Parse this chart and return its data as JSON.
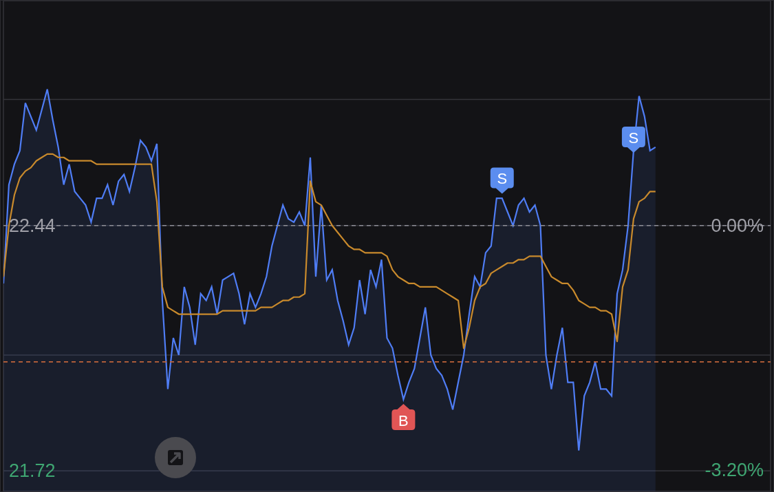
{
  "chart_data": {
    "type": "area",
    "categories": [
      null,
      null,
      null,
      null,
      null,
      null,
      null,
      null,
      null,
      null,
      null,
      null,
      null,
      null,
      null,
      null,
      null,
      null,
      null,
      null,
      null,
      null,
      null,
      null,
      null,
      null,
      null,
      null,
      null,
      null,
      null,
      null,
      null,
      null,
      null,
      null,
      null,
      null,
      null,
      null,
      null,
      null,
      null,
      null,
      null,
      null,
      null,
      null,
      null,
      null,
      null,
      null,
      null,
      null,
      null,
      null,
      null,
      null,
      null,
      null,
      null,
      null,
      null,
      null,
      null,
      null,
      null,
      null,
      null,
      null,
      null,
      null,
      null,
      null,
      null,
      null,
      null,
      null,
      null,
      null,
      null,
      null,
      null,
      null,
      null,
      null,
      null,
      null,
      null,
      null,
      null,
      null,
      null,
      null,
      null,
      null,
      null,
      null,
      null,
      null,
      null,
      null,
      null,
      null,
      null,
      null,
      null,
      null,
      null,
      null,
      null,
      null,
      null,
      null,
      null,
      null,
      null,
      null,
      null,
      null
    ],
    "series": [
      {
        "color": "#4f7df5",
        "values": [
          22.27,
          22.56,
          22.62,
          22.66,
          22.8,
          22.76,
          22.72,
          22.78,
          22.84,
          22.75,
          22.67,
          22.56,
          22.62,
          22.54,
          22.52,
          22.5,
          22.45,
          22.52,
          22.52,
          22.56,
          22.5,
          22.57,
          22.59,
          22.54,
          22.61,
          22.69,
          22.67,
          22.63,
          22.68,
          22.22,
          21.96,
          22.11,
          22.06,
          22.26,
          22.2,
          22.09,
          22.24,
          22.22,
          22.26,
          22.18,
          22.28,
          22.29,
          22.3,
          22.24,
          22.15,
          22.24,
          22.2,
          22.24,
          22.29,
          22.38,
          22.44,
          22.5,
          22.46,
          22.45,
          22.48,
          22.44,
          22.64,
          22.29,
          22.5,
          22.28,
          22.31,
          22.22,
          22.16,
          22.09,
          22.14,
          22.28,
          22.18,
          22.31,
          22.26,
          22.34,
          22.11,
          22.08,
          22.0,
          21.93,
          21.98,
          22.02,
          22.11,
          22.2,
          22.06,
          22.02,
          22.0,
          21.96,
          21.9,
          21.98,
          22.06,
          22.18,
          22.29,
          22.26,
          22.36,
          22.38,
          22.52,
          22.52,
          22.48,
          22.44,
          22.5,
          22.52,
          22.48,
          22.5,
          22.44,
          22.06,
          21.96,
          22.06,
          22.14,
          21.98,
          21.98,
          21.78,
          21.94,
          21.98,
          22.04,
          21.96,
          21.96,
          21.94,
          22.24,
          22.31,
          22.44,
          22.66,
          22.82,
          22.76,
          22.66,
          22.67
        ]
      },
      {
        "type": "line",
        "color": "#c98a2c",
        "values": [
          22.29,
          22.44,
          22.53,
          22.58,
          22.6,
          22.61,
          22.63,
          22.64,
          22.65,
          22.65,
          22.64,
          22.64,
          22.63,
          22.63,
          22.63,
          22.63,
          22.63,
          22.62,
          22.62,
          22.62,
          22.62,
          22.62,
          22.62,
          22.62,
          22.62,
          22.62,
          22.62,
          22.62,
          22.51,
          22.26,
          22.2,
          22.19,
          22.18,
          22.18,
          22.18,
          22.18,
          22.18,
          22.18,
          22.18,
          22.18,
          22.19,
          22.19,
          22.19,
          22.19,
          22.19,
          22.19,
          22.19,
          22.2,
          22.2,
          22.2,
          22.21,
          22.22,
          22.22,
          22.23,
          22.23,
          22.24,
          22.57,
          22.51,
          22.5,
          22.47,
          22.44,
          22.42,
          22.4,
          22.38,
          22.37,
          22.37,
          22.36,
          22.36,
          22.36,
          22.36,
          22.35,
          22.31,
          22.29,
          22.28,
          22.27,
          22.27,
          22.26,
          22.26,
          22.26,
          22.26,
          22.25,
          22.24,
          22.23,
          22.22,
          22.08,
          22.14,
          22.22,
          22.26,
          22.27,
          22.3,
          22.31,
          22.32,
          22.33,
          22.33,
          22.34,
          22.34,
          22.35,
          22.35,
          22.35,
          22.32,
          22.29,
          22.28,
          22.27,
          22.27,
          22.25,
          22.22,
          22.21,
          22.2,
          22.2,
          22.19,
          22.19,
          22.18,
          22.1,
          22.26,
          22.31,
          22.46,
          22.51,
          22.52,
          22.54,
          22.54
        ]
      },
      {
        "type": "scatter",
        "values": [
          null,
          null,
          null,
          null,
          null,
          null,
          null,
          null,
          null,
          null,
          null,
          null,
          null,
          null,
          null,
          null,
          null,
          null,
          null,
          null,
          null,
          null,
          null,
          null,
          null,
          null,
          null,
          null,
          null,
          null,
          null,
          null,
          null,
          null,
          null,
          null,
          null,
          null,
          null,
          null,
          null,
          null,
          null,
          null,
          null,
          null,
          null,
          null,
          null,
          null,
          null,
          null,
          null,
          null,
          null,
          null,
          null,
          null,
          null,
          null,
          null,
          null,
          null,
          null,
          null,
          null,
          null,
          null,
          null,
          null,
          null,
          null,
          null,
          21.87,
          null,
          null,
          null,
          null,
          null,
          null,
          null,
          null,
          null,
          null,
          null,
          null,
          null,
          null,
          null,
          null,
          null,
          22.58,
          null,
          null,
          null,
          null,
          null,
          null,
          null,
          null,
          null,
          null,
          null,
          null,
          null,
          null,
          null,
          null,
          null,
          null,
          null,
          null,
          null,
          null,
          null,
          22.7,
          null,
          null,
          null,
          null
        ],
        "value_labels": [
          null,
          null,
          null,
          null,
          null,
          null,
          null,
          null,
          null,
          null,
          null,
          null,
          null,
          null,
          null,
          null,
          null,
          null,
          null,
          null,
          null,
          null,
          null,
          null,
          null,
          null,
          null,
          null,
          null,
          null,
          null,
          null,
          null,
          null,
          null,
          null,
          null,
          null,
          null,
          null,
          null,
          null,
          null,
          null,
          null,
          null,
          null,
          null,
          null,
          null,
          null,
          null,
          null,
          null,
          null,
          null,
          null,
          null,
          null,
          null,
          null,
          null,
          null,
          null,
          null,
          null,
          null,
          null,
          null,
          null,
          null,
          null,
          null,
          "B",
          null,
          null,
          null,
          null,
          null,
          null,
          null,
          null,
          null,
          null,
          null,
          null,
          null,
          null,
          null,
          null,
          null,
          "S",
          null,
          null,
          null,
          null,
          null,
          null,
          null,
          null,
          null,
          null,
          null,
          null,
          null,
          null,
          null,
          null,
          null,
          null,
          null,
          null,
          null,
          null,
          null,
          "S",
          null,
          null,
          null,
          null
        ],
        "colors": [
          null,
          null,
          null,
          null,
          null,
          null,
          null,
          null,
          null,
          null,
          null,
          null,
          null,
          null,
          null,
          null,
          null,
          null,
          null,
          null,
          null,
          null,
          null,
          null,
          null,
          null,
          null,
          null,
          null,
          null,
          null,
          null,
          null,
          null,
          null,
          null,
          null,
          null,
          null,
          null,
          null,
          null,
          null,
          null,
          null,
          null,
          null,
          null,
          null,
          null,
          null,
          null,
          null,
          null,
          null,
          null,
          null,
          null,
          null,
          null,
          null,
          null,
          null,
          null,
          null,
          null,
          null,
          null,
          null,
          null,
          null,
          null,
          null,
          "#e05555",
          null,
          null,
          null,
          null,
          null,
          null,
          null,
          null,
          null,
          null,
          null,
          null,
          null,
          null,
          null,
          null,
          null,
          "#5b8def",
          null,
          null,
          null,
          null,
          null,
          null,
          null,
          null,
          null,
          null,
          null,
          null,
          null,
          null,
          null,
          null,
          null,
          null,
          null,
          null,
          null,
          null,
          null,
          "#5b8def",
          null,
          null,
          null,
          null
        ]
      }
    ],
    "ylim": [
      21.66,
      23.1
    ],
    "yticks": [
      21.72,
      {
        "value": 22.06,
        "label": null
      },
      22.44,
      {
        "value": 22.81,
        "label": null
      }
    ],
    "y2lim": [
      -3.48,
      2.94
    ],
    "y2ticks": [
      {
        "value": -3.2,
        "label": "-3.20%"
      },
      {
        "value": 0,
        "label": "0.00%"
      }
    ],
    "ref_lines": [
      {
        "axis": "y",
        "value": 22.44,
        "color": "#8e8e96",
        "line_style": "dashed"
      },
      {
        "axis": "y",
        "value": 22.04,
        "color": "#c0643a",
        "line_style": "dashed"
      }
    ],
    "grid": true,
    "legend": false
  }
}
